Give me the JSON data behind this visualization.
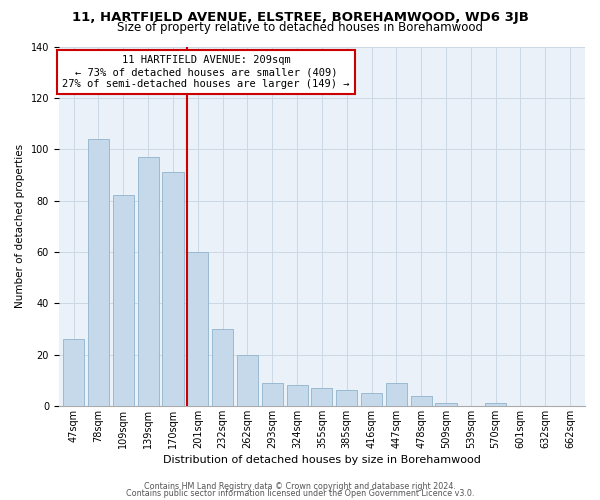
{
  "title": "11, HARTFIELD AVENUE, ELSTREE, BOREHAMWOOD, WD6 3JB",
  "subtitle": "Size of property relative to detached houses in Borehamwood",
  "xlabel": "Distribution of detached houses by size in Borehamwood",
  "ylabel": "Number of detached properties",
  "bar_labels": [
    "47sqm",
    "78sqm",
    "109sqm",
    "139sqm",
    "170sqm",
    "201sqm",
    "232sqm",
    "262sqm",
    "293sqm",
    "324sqm",
    "355sqm",
    "385sqm",
    "416sqm",
    "447sqm",
    "478sqm",
    "509sqm",
    "539sqm",
    "570sqm",
    "601sqm",
    "632sqm",
    "662sqm"
  ],
  "bar_values": [
    26,
    104,
    82,
    97,
    91,
    60,
    30,
    20,
    9,
    8,
    7,
    6,
    5,
    9,
    4,
    1,
    0,
    1,
    0,
    0,
    0
  ],
  "bar_color": "#c6d9ea",
  "bar_edge_color": "#8fb4cc",
  "vline_x_idx": 5,
  "vline_color": "#cc0000",
  "annotation_title": "11 HARTFIELD AVENUE: 209sqm",
  "annotation_line1": "← 73% of detached houses are smaller (409)",
  "annotation_line2": "27% of semi-detached houses are larger (149) →",
  "footer1": "Contains HM Land Registry data © Crown copyright and database right 2024.",
  "footer2": "Contains public sector information licensed under the Open Government Licence v3.0.",
  "ylim": [
    0,
    140
  ],
  "title_fontsize": 9.5,
  "subtitle_fontsize": 8.5,
  "xlabel_fontsize": 8.0,
  "ylabel_fontsize": 7.5,
  "tick_fontsize": 7.0,
  "annot_fontsize": 7.5,
  "footer_fontsize": 5.8,
  "bg_color": "#ffffff",
  "grid_color": "#ccd8e4",
  "plot_bg_color": "#eaf1f8"
}
